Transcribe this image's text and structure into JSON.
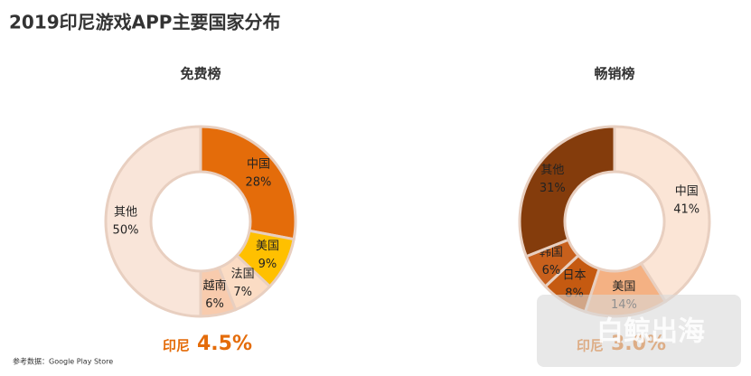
{
  "title": "2019印尼游戏APP主要国家分布",
  "source": "参考数据：Google Play Store",
  "watermark": "白鲸出海",
  "chart_data": [
    {
      "type": "pie",
      "title": "免费榜",
      "categories": [
        "中国",
        "美国",
        "法国",
        "越南",
        "其他"
      ],
      "values": [
        28,
        9,
        7,
        6,
        50
      ],
      "value_labels": [
        "28%",
        "9%",
        "7%",
        "6%",
        "50%"
      ],
      "colors": [
        "#e46c0a",
        "#ffc000",
        "#fbdcc4",
        "#f8cbad",
        "#f9e5d9"
      ],
      "annotation": "印尼",
      "annotation_value": "4.5%"
    },
    {
      "type": "pie",
      "title": "畅销榜",
      "categories": [
        "中国",
        "美国",
        "日本",
        "韩国",
        "其他"
      ],
      "values": [
        41,
        14,
        8,
        6,
        31
      ],
      "value_labels": [
        "41%",
        "14%",
        "8%",
        "6%",
        "31%"
      ],
      "colors": [
        "#fbe5d6",
        "#f4b183",
        "#c55a11",
        "#c8601c",
        "#843c0c"
      ],
      "annotation": "印尼",
      "annotation_value": "3.0%"
    }
  ]
}
